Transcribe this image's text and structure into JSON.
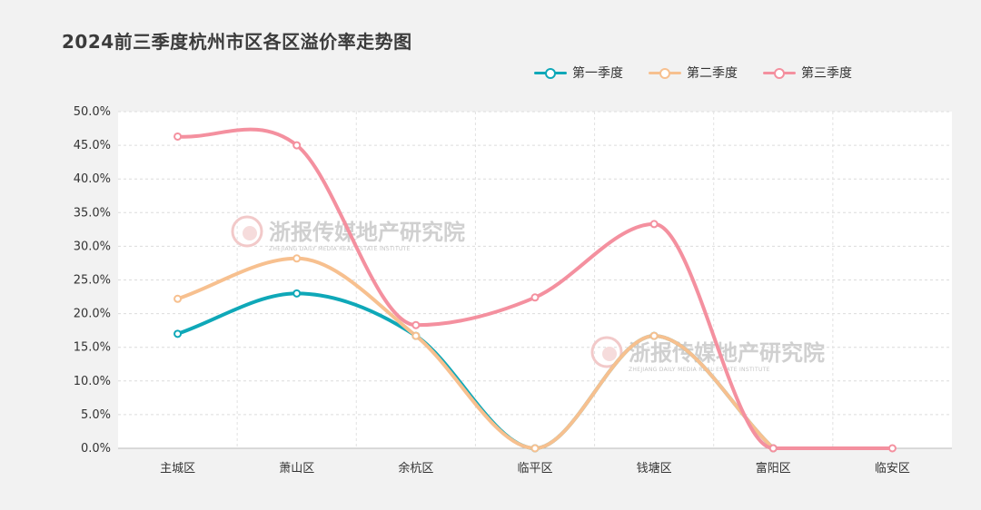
{
  "title": "2024前三季度杭州市区各区溢价率走势图",
  "watermark": {
    "name": "浙报传媒地产研究院",
    "subtitle": "ZHEJIANG DAILY MEDIA REAL ESTATE INSTITUTE"
  },
  "chart_data": {
    "type": "line",
    "title": "2024前三季度杭州市区各区溢价率走势图",
    "categories": [
      "主城区",
      "萧山区",
      "余杭区",
      "临平区",
      "钱塘区",
      "富阳区",
      "临安区"
    ],
    "ylim": [
      0,
      50
    ],
    "y_ticks": [
      "0.0%",
      "5.0%",
      "10.0%",
      "15.0%",
      "20.0%",
      "25.0%",
      "30.0%",
      "35.0%",
      "40.0%",
      "45.0%",
      "50.0%"
    ],
    "grid": true,
    "legend_position": "top-right",
    "series": [
      {
        "name": "第一季度",
        "color": "#0fa8b8",
        "values": [
          17.0,
          23.0,
          16.7,
          0.0,
          16.7,
          0.0,
          null
        ]
      },
      {
        "name": "第二季度",
        "color": "#f7c08f",
        "values": [
          22.2,
          28.2,
          16.7,
          0.0,
          16.7,
          0.0,
          null
        ]
      },
      {
        "name": "第三季度",
        "color": "#f4909f",
        "values": [
          46.3,
          45.0,
          18.3,
          22.4,
          33.3,
          0.0,
          0.0
        ]
      }
    ]
  }
}
